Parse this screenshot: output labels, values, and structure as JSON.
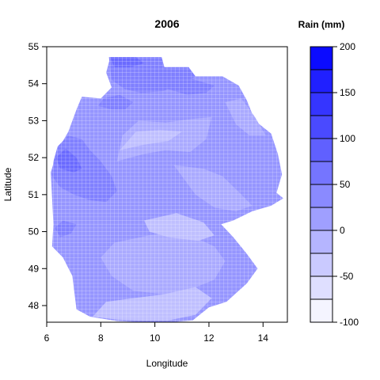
{
  "chart_data": {
    "type": "heatmap",
    "title": "2006",
    "xlabel": "Longitude",
    "ylabel": "Latitude",
    "xlim": [
      6,
      14.9
    ],
    "ylim": [
      47.55,
      55
    ],
    "xticks": [
      "6",
      "8",
      "10",
      "12",
      "14"
    ],
    "yticks": [
      "48",
      "49",
      "50",
      "51",
      "52",
      "53",
      "54",
      "55"
    ],
    "colorbar": {
      "title": "Rain (mm)",
      "ticks": [
        "-100",
        "-50",
        "0",
        "50",
        "100",
        "150",
        "200"
      ],
      "range": [
        -100,
        200
      ],
      "step": 25,
      "color_low": "#ffffff",
      "color_high": "#0000ff"
    },
    "regions": [
      {
        "level": 25,
        "outline": [
          [
            8.35,
            54.72
          ],
          [
            10.2,
            54.72
          ],
          [
            10.3,
            54.4
          ],
          [
            11.2,
            54.4
          ],
          [
            11.5,
            54.2
          ],
          [
            12.5,
            54.2
          ],
          [
            13.1,
            53.95
          ],
          [
            13.4,
            53.55
          ],
          [
            13.7,
            53.0
          ],
          [
            14.3,
            52.65
          ],
          [
            14.55,
            52.1
          ],
          [
            14.7,
            51.55
          ],
          [
            14.5,
            51.05
          ],
          [
            14.75,
            50.9
          ],
          [
            14.3,
            50.7
          ],
          [
            13.6,
            50.55
          ],
          [
            12.9,
            50.3
          ],
          [
            12.45,
            50.2
          ],
          [
            12.9,
            49.85
          ],
          [
            13.4,
            49.4
          ],
          [
            13.8,
            49.0
          ],
          [
            13.4,
            48.6
          ],
          [
            12.65,
            48.1
          ],
          [
            12.0,
            47.95
          ],
          [
            11.4,
            47.6
          ],
          [
            10.6,
            47.55
          ],
          [
            9.6,
            47.55
          ],
          [
            8.6,
            47.58
          ],
          [
            7.6,
            47.7
          ],
          [
            7.1,
            47.9
          ],
          [
            6.95,
            48.8
          ],
          [
            6.6,
            49.3
          ],
          [
            6.2,
            49.6
          ],
          [
            6.25,
            50.2
          ],
          [
            6.2,
            50.9
          ],
          [
            6.15,
            51.6
          ],
          [
            6.4,
            52.2
          ],
          [
            6.8,
            52.7
          ],
          [
            7.1,
            53.3
          ],
          [
            7.3,
            53.65
          ],
          [
            8.0,
            53.6
          ],
          [
            8.4,
            53.9
          ],
          [
            8.2,
            54.3
          ],
          [
            8.35,
            54.72
          ]
        ]
      },
      {
        "level": 0,
        "outline": [
          [
            8.6,
            51.9
          ],
          [
            9.6,
            52.1
          ],
          [
            10.4,
            52.2
          ],
          [
            11.3,
            52.15
          ],
          [
            11.9,
            52.5
          ],
          [
            12.1,
            53.1
          ],
          [
            11.4,
            53.05
          ],
          [
            10.4,
            52.95
          ],
          [
            9.4,
            53.0
          ],
          [
            8.8,
            52.6
          ]
        ]
      },
      {
        "level": 0,
        "outline": [
          [
            10.7,
            51.8
          ],
          [
            11.8,
            51.7
          ],
          [
            12.5,
            51.5
          ],
          [
            13.2,
            51.0
          ],
          [
            13.6,
            50.7
          ],
          [
            13.0,
            50.55
          ],
          [
            12.2,
            50.65
          ],
          [
            11.5,
            51.0
          ]
        ]
      },
      {
        "level": 0,
        "outline": [
          [
            12.6,
            53.5
          ],
          [
            13.0,
            52.9
          ],
          [
            13.5,
            52.6
          ],
          [
            14.1,
            52.6
          ],
          [
            13.7,
            53.1
          ],
          [
            13.2,
            53.6
          ]
        ]
      },
      {
        "level": 0,
        "outline": [
          [
            8.5,
            49.7
          ],
          [
            9.8,
            49.9
          ],
          [
            10.8,
            50.0
          ],
          [
            11.6,
            49.8
          ],
          [
            12.2,
            49.6
          ],
          [
            12.6,
            49.2
          ],
          [
            12.2,
            48.7
          ],
          [
            11.2,
            48.4
          ],
          [
            10.4,
            48.3
          ],
          [
            9.2,
            48.4
          ],
          [
            8.4,
            48.8
          ],
          [
            8.0,
            49.3
          ]
        ]
      },
      {
        "level": -25,
        "outline": [
          [
            9.6,
            50.3
          ],
          [
            10.8,
            50.5
          ],
          [
            11.8,
            50.25
          ],
          [
            12.2,
            49.9
          ],
          [
            11.6,
            49.75
          ],
          [
            10.5,
            49.85
          ],
          [
            9.8,
            50.0
          ]
        ]
      },
      {
        "level": -25,
        "outline": [
          [
            7.7,
            47.7
          ],
          [
            8.2,
            48.1
          ],
          [
            9.2,
            48.2
          ],
          [
            10.3,
            48.3
          ],
          [
            11.5,
            48.5
          ],
          [
            12.1,
            48.2
          ],
          [
            11.5,
            47.75
          ],
          [
            10.5,
            47.6
          ],
          [
            9.6,
            47.6
          ],
          [
            8.6,
            47.62
          ]
        ]
      },
      {
        "level": -25,
        "outline": [
          [
            8.7,
            52.2
          ],
          [
            9.6,
            52.35
          ],
          [
            10.5,
            52.45
          ],
          [
            11.0,
            52.7
          ],
          [
            10.2,
            52.75
          ],
          [
            9.3,
            52.7
          ]
        ]
      },
      {
        "level": 50,
        "outline": [
          [
            8.3,
            54.72
          ],
          [
            10.25,
            54.72
          ],
          [
            10.35,
            54.45
          ],
          [
            11.25,
            54.45
          ],
          [
            11.5,
            54.2
          ],
          [
            11.0,
            54.0
          ],
          [
            10.3,
            53.8
          ],
          [
            9.5,
            53.75
          ],
          [
            8.9,
            53.85
          ],
          [
            8.4,
            54.1
          ]
        ]
      },
      {
        "level": 50,
        "outline": [
          [
            6.25,
            51.9
          ],
          [
            6.4,
            52.3
          ],
          [
            6.8,
            52.6
          ],
          [
            7.3,
            52.5
          ],
          [
            7.6,
            52.2
          ],
          [
            8.0,
            51.9
          ],
          [
            8.4,
            51.5
          ],
          [
            8.6,
            51.1
          ],
          [
            8.2,
            50.8
          ],
          [
            7.6,
            50.85
          ],
          [
            7.0,
            51.0
          ],
          [
            6.5,
            51.2
          ],
          [
            6.2,
            51.5
          ]
        ]
      },
      {
        "level": 50,
        "outline": [
          [
            9.9,
            54.25
          ],
          [
            10.8,
            54.3
          ],
          [
            11.5,
            54.1
          ],
          [
            12.2,
            53.95
          ],
          [
            11.9,
            53.75
          ],
          [
            11.2,
            53.7
          ],
          [
            10.5,
            53.85
          ]
        ]
      },
      {
        "level": 50,
        "outline": [
          [
            8.1,
            53.6
          ],
          [
            8.7,
            53.7
          ],
          [
            9.2,
            53.5
          ],
          [
            8.9,
            53.3
          ],
          [
            8.4,
            53.3
          ],
          [
            7.9,
            53.4
          ]
        ]
      },
      {
        "level": 50,
        "outline": [
          [
            6.3,
            50.1
          ],
          [
            6.6,
            50.3
          ],
          [
            7.1,
            50.2
          ],
          [
            6.9,
            49.95
          ],
          [
            6.5,
            49.85
          ]
        ]
      },
      {
        "level": 75,
        "outline": [
          [
            8.35,
            54.72
          ],
          [
            9.3,
            54.72
          ],
          [
            9.6,
            54.55
          ],
          [
            9.1,
            54.45
          ],
          [
            8.5,
            54.45
          ]
        ]
      },
      {
        "level": 75,
        "outline": [
          [
            6.35,
            52.0
          ],
          [
            6.7,
            52.25
          ],
          [
            7.1,
            52.0
          ],
          [
            7.3,
            51.7
          ],
          [
            7.0,
            51.6
          ],
          [
            6.5,
            51.7
          ]
        ]
      }
    ]
  }
}
